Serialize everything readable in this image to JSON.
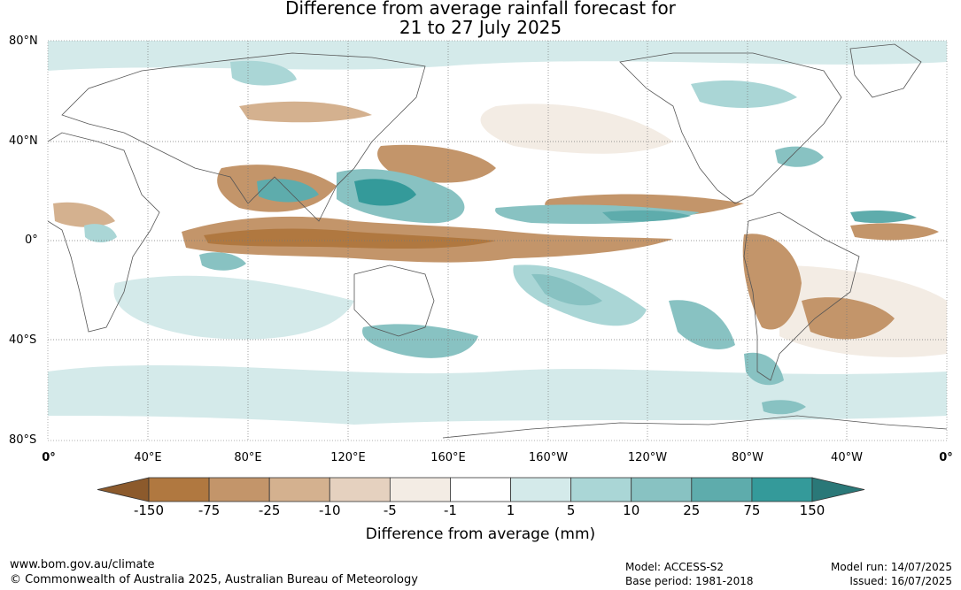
{
  "title": {
    "line1": "Difference from average rainfall forecast for",
    "line2": "21 to 27 July 2025"
  },
  "lat_labels": [
    "80°N",
    "40°N",
    "0°",
    "40°S",
    "80°S"
  ],
  "lon_labels": [
    "0°",
    "40°E",
    "80°E",
    "120°E",
    "160°E",
    "160°W",
    "120°W",
    "80°W",
    "40°W",
    "0°"
  ],
  "colorbar": {
    "title": "Difference from average (mm)",
    "ticks": [
      "-150",
      "-75",
      "-25",
      "-10",
      "-5",
      "-1",
      "1",
      "5",
      "10",
      "25",
      "75",
      "150"
    ],
    "colors": [
      "#8c5a2c",
      "#b07840",
      "#c3956a",
      "#d4b18f",
      "#e5d1bf",
      "#f3ece4",
      "#ffffff",
      "#d4eaea",
      "#aad6d6",
      "#88c2c2",
      "#5eacac",
      "#349a9a",
      "#2a7878"
    ]
  },
  "footer": {
    "url": "www.bom.gov.au/climate",
    "copyright": "© Commonwealth of Australia 2025, Australian Bureau of Meteorology",
    "model": "Model: ACCESS-S2",
    "base_period": "Base period: 1981-2018",
    "model_run": "Model run: 14/07/2025",
    "issued": "Issued: 16/07/2025"
  }
}
